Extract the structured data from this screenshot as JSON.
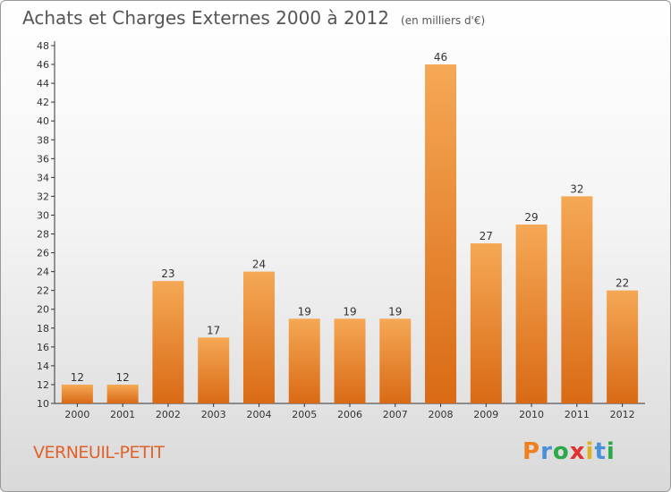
{
  "title": "Achats et Charges Externes 2000 à 2012",
  "subtitle": "(en milliers d'€)",
  "town": "VERNEUIL-PETIT",
  "logo": {
    "letters": [
      "P",
      "r",
      "o",
      "x",
      "i",
      "t",
      "i"
    ],
    "colors": [
      "#f07f20",
      "#4a90d9",
      "#2aa84a",
      "#e03030",
      "#e0b020",
      "#4a90d9",
      "#2aa84a"
    ]
  },
  "colors": {
    "bar_top": "#f5a855",
    "bar_bottom": "#d96a15",
    "title": "#555555",
    "town": "#e0622a"
  },
  "chart_data": {
    "type": "bar",
    "title": "Achats et Charges Externes 2000 à 2012",
    "subtitle": "(en milliers d'€)",
    "categories": [
      "2000",
      "2001",
      "2002",
      "2003",
      "2004",
      "2005",
      "2006",
      "2007",
      "2008",
      "2009",
      "2010",
      "2011",
      "2012"
    ],
    "values": [
      12,
      12,
      23,
      17,
      24,
      19,
      19,
      19,
      46,
      27,
      29,
      32,
      22
    ],
    "ylim": [
      10,
      48
    ],
    "yticks": [
      10,
      12,
      14,
      16,
      18,
      20,
      22,
      24,
      26,
      28,
      30,
      32,
      34,
      36,
      38,
      40,
      42,
      44,
      46,
      48
    ],
    "grid": false,
    "legend": "none"
  }
}
